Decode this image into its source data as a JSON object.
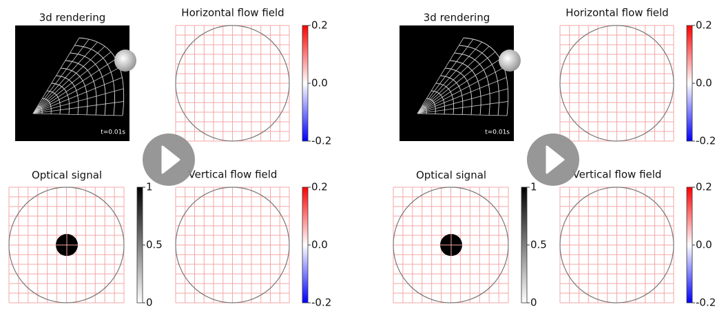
{
  "videos": [
    {
      "panels": [
        {
          "title": "3d rendering",
          "timestamp": "t=0.01s"
        },
        {
          "title": "Horizontal flow field",
          "colorbar_ticks": [
            "0.2",
            "0.0",
            "-0.2"
          ]
        },
        {
          "title": "Optical signal",
          "colorbar_ticks": [
            "1",
            "0.5",
            "0"
          ]
        },
        {
          "title": "Vertical flow field",
          "colorbar_ticks": [
            "0.2",
            "0.0",
            "-0.2"
          ]
        }
      ]
    },
    {
      "panels": [
        {
          "title": "3d rendering",
          "timestamp": "t=0.01s"
        },
        {
          "title": "Horizontal flow field",
          "colorbar_ticks": [
            "0.2",
            "0.0",
            "-0.2"
          ]
        },
        {
          "title": "Optical signal",
          "colorbar_ticks": [
            "1",
            "0.5",
            "0"
          ]
        },
        {
          "title": "Vertical flow field",
          "colorbar_ticks": [
            "0.2",
            "0.0",
            "-0.2"
          ]
        }
      ]
    }
  ]
}
